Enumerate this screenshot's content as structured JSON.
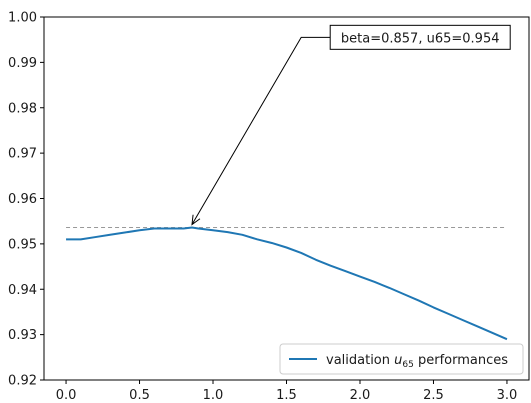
{
  "chart_data": {
    "type": "line",
    "title": "",
    "xlabel": "",
    "ylabel": "",
    "xlim": [
      -0.15,
      3.15
    ],
    "ylim": [
      0.92,
      1.0
    ],
    "xticks": [
      0.0,
      0.5,
      1.0,
      1.5,
      2.0,
      2.5,
      3.0
    ],
    "xtick_labels": [
      "0.0",
      "0.5",
      "1.0",
      "1.5",
      "2.0",
      "2.5",
      "3.0"
    ],
    "yticks": [
      0.92,
      0.93,
      0.94,
      0.95,
      0.96,
      0.97,
      0.98,
      0.99,
      1.0
    ],
    "ytick_labels": [
      "0.92",
      "0.93",
      "0.94",
      "0.95",
      "0.96",
      "0.97",
      "0.98",
      "0.99",
      "1.00"
    ],
    "grid": false,
    "legend_position": "lower-right",
    "series": [
      {
        "name": "validation u65 performances",
        "legend_prefix": "validation ",
        "legend_symbol": "u",
        "legend_subscript": "65",
        "legend_suffix": " performances",
        "color": "#1f77b4",
        "x": [
          0.0,
          0.1,
          0.2,
          0.3,
          0.4,
          0.5,
          0.6,
          0.7,
          0.8,
          0.857,
          0.9,
          1.0,
          1.1,
          1.2,
          1.3,
          1.4,
          1.5,
          1.6,
          1.7,
          1.8,
          1.9,
          2.0,
          2.1,
          2.2,
          2.3,
          2.4,
          2.5,
          2.6,
          2.7,
          2.8,
          2.9,
          3.0
        ],
        "y": [
          0.951,
          0.951,
          0.9515,
          0.952,
          0.9525,
          0.953,
          0.9534,
          0.9534,
          0.9534,
          0.9536,
          0.9534,
          0.953,
          0.9526,
          0.952,
          0.951,
          0.9502,
          0.9492,
          0.948,
          0.9465,
          0.9452,
          0.944,
          0.9428,
          0.9416,
          0.9403,
          0.9389,
          0.9375,
          0.936,
          0.9346,
          0.9332,
          0.9318,
          0.9304,
          0.929
        ]
      }
    ],
    "reference_line": {
      "y": 0.9536,
      "x_range": [
        0.0,
        3.0
      ],
      "color": "#999999",
      "style": "dashed"
    },
    "annotation": {
      "text": "beta=0.857, u65=0.954",
      "point": [
        0.857,
        0.9536
      ],
      "text_anchor": [
        1.6,
        0.9953
      ]
    }
  }
}
